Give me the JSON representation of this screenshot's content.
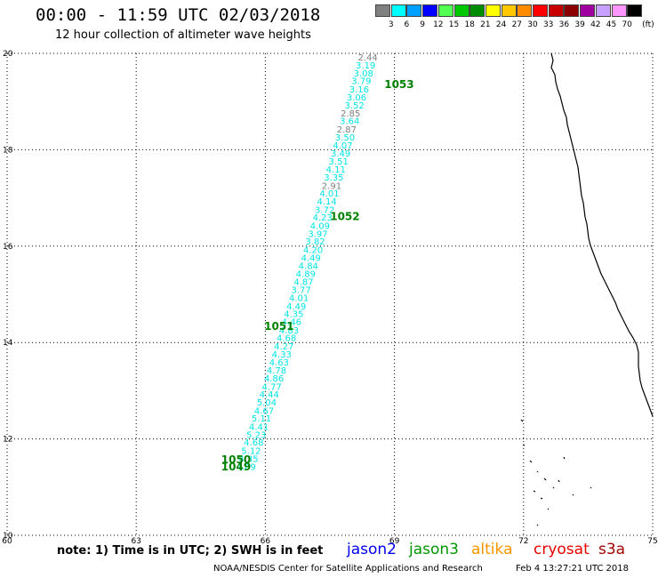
{
  "header": {
    "title": "00:00 - 11:59 UTC 02/03/2018",
    "subtitle": "12 hour collection of altimeter wave heights"
  },
  "colorbar": {
    "unit": "(ft)",
    "items": [
      {
        "color": "#808080",
        "label": "3"
      },
      {
        "color": "#00ffff",
        "label": "6"
      },
      {
        "color": "#00a0ff",
        "label": "9"
      },
      {
        "color": "#0000ff",
        "label": "12"
      },
      {
        "color": "#50ff50",
        "label": "15"
      },
      {
        "color": "#00c800",
        "label": "18"
      },
      {
        "color": "#008c00",
        "label": "21"
      },
      {
        "color": "#ffff00",
        "label": "24"
      },
      {
        "color": "#ffc800",
        "label": "27"
      },
      {
        "color": "#ff8c00",
        "label": "30"
      },
      {
        "color": "#ff0000",
        "label": "33"
      },
      {
        "color": "#c80000",
        "label": "36"
      },
      {
        "color": "#8c0000",
        "label": "39"
      },
      {
        "color": "#a000a0",
        "label": "42"
      },
      {
        "color": "#c8a0ff",
        "label": "45"
      },
      {
        "color": "#ff96ff",
        "label": "70"
      },
      {
        "color": "#000000",
        "label": ""
      }
    ]
  },
  "axes": {
    "lon_ticks": [
      60,
      63,
      66,
      69,
      72,
      75
    ],
    "lat_ticks": [
      10,
      12,
      14,
      16,
      18,
      20
    ],
    "lon_range": [
      60,
      75
    ],
    "lat_range": [
      10,
      20
    ]
  },
  "track_points": [
    {
      "lon": 68.38,
      "lat": 19.85,
      "value": "2.44",
      "color": "#808080"
    },
    {
      "lon": 68.33,
      "lat": 19.69,
      "value": "3.19",
      "color": "#00e5e5"
    },
    {
      "lon": 68.28,
      "lat": 19.52,
      "value": "3.08",
      "color": "#00e5e5"
    },
    {
      "lon": 68.23,
      "lat": 19.36,
      "value": "3.79",
      "color": "#00e5e5"
    },
    {
      "lon": 68.18,
      "lat": 19.19,
      "value": "3.16",
      "color": "#00e5e5"
    },
    {
      "lon": 68.12,
      "lat": 19.02,
      "value": "3.06",
      "color": "#00e5e5"
    },
    {
      "lon": 68.07,
      "lat": 18.86,
      "value": "3.52",
      "color": "#00e5e5"
    },
    {
      "lon": 67.98,
      "lat": 18.69,
      "value": "2.85",
      "color": "#808080"
    },
    {
      "lon": 67.96,
      "lat": 18.53,
      "value": "3.64",
      "color": "#00e5e5"
    },
    {
      "lon": 67.89,
      "lat": 18.36,
      "value": "2.87",
      "color": "#808080"
    },
    {
      "lon": 67.85,
      "lat": 18.19,
      "value": "3.50",
      "color": "#00e5e5"
    },
    {
      "lon": 67.8,
      "lat": 18.03,
      "value": "4.07",
      "color": "#00e5e5"
    },
    {
      "lon": 67.75,
      "lat": 17.86,
      "value": "3.49",
      "color": "#00e5e5"
    },
    {
      "lon": 67.7,
      "lat": 17.69,
      "value": "3.51",
      "color": "#00e5e5"
    },
    {
      "lon": 67.64,
      "lat": 17.53,
      "value": "4.11",
      "color": "#00e5e5"
    },
    {
      "lon": 67.59,
      "lat": 17.36,
      "value": "3.35",
      "color": "#00e5e5"
    },
    {
      "lon": 67.54,
      "lat": 17.19,
      "value": "2.91",
      "color": "#808080"
    },
    {
      "lon": 67.49,
      "lat": 17.03,
      "value": "4.01",
      "color": "#00e5e5"
    },
    {
      "lon": 67.43,
      "lat": 16.86,
      "value": "4.14",
      "color": "#00e5e5"
    },
    {
      "lon": 67.38,
      "lat": 16.69,
      "value": "3.72",
      "color": "#00e5e5"
    },
    {
      "lon": 67.33,
      "lat": 16.53,
      "value": "4.23",
      "color": "#00e5e5"
    },
    {
      "lon": 67.27,
      "lat": 16.36,
      "value": "4.09",
      "color": "#00e5e5"
    },
    {
      "lon": 67.22,
      "lat": 16.19,
      "value": "3.97",
      "color": "#00e5e5"
    },
    {
      "lon": 67.16,
      "lat": 16.03,
      "value": "3.82",
      "color": "#00e5e5"
    },
    {
      "lon": 67.11,
      "lat": 15.86,
      "value": "4.20",
      "color": "#00e5e5"
    },
    {
      "lon": 67.06,
      "lat": 15.69,
      "value": "4.49",
      "color": "#00e5e5"
    },
    {
      "lon": 67.0,
      "lat": 15.53,
      "value": "4.84",
      "color": "#00e5e5"
    },
    {
      "lon": 66.94,
      "lat": 15.36,
      "value": "4.89",
      "color": "#00e5e5"
    },
    {
      "lon": 66.89,
      "lat": 15.19,
      "value": "4.87",
      "color": "#00e5e5"
    },
    {
      "lon": 66.83,
      "lat": 15.03,
      "value": "3.77",
      "color": "#00e5e5"
    },
    {
      "lon": 66.78,
      "lat": 14.86,
      "value": "4.01",
      "color": "#00e5e5"
    },
    {
      "lon": 66.72,
      "lat": 14.69,
      "value": "4.49",
      "color": "#00e5e5"
    },
    {
      "lon": 66.66,
      "lat": 14.53,
      "value": "4.35",
      "color": "#00e5e5"
    },
    {
      "lon": 66.61,
      "lat": 14.36,
      "value": "4.46",
      "color": "#00e5e5"
    },
    {
      "lon": 66.55,
      "lat": 14.19,
      "value": "4.83",
      "color": "#00e5e5"
    },
    {
      "lon": 66.49,
      "lat": 14.03,
      "value": "4.68",
      "color": "#00e5e5"
    },
    {
      "lon": 66.43,
      "lat": 13.86,
      "value": "4.27",
      "color": "#00e5e5"
    },
    {
      "lon": 66.38,
      "lat": 13.69,
      "value": "4.33",
      "color": "#00e5e5"
    },
    {
      "lon": 66.32,
      "lat": 13.52,
      "value": "4.63",
      "color": "#00e5e5"
    },
    {
      "lon": 66.26,
      "lat": 13.36,
      "value": "4.78",
      "color": "#00e5e5"
    },
    {
      "lon": 66.2,
      "lat": 13.19,
      "value": "4.86",
      "color": "#00e5e5"
    },
    {
      "lon": 66.15,
      "lat": 13.02,
      "value": "4.77",
      "color": "#00e5e5"
    },
    {
      "lon": 66.09,
      "lat": 12.86,
      "value": "4.44",
      "color": "#00e5e5"
    },
    {
      "lon": 66.03,
      "lat": 12.69,
      "value": "5.04",
      "color": "#00e5e5"
    },
    {
      "lon": 65.97,
      "lat": 12.52,
      "value": "4.67",
      "color": "#00e5e5"
    },
    {
      "lon": 65.91,
      "lat": 12.36,
      "value": "5.11",
      "color": "#00e5e5"
    },
    {
      "lon": 65.85,
      "lat": 12.19,
      "value": "4.41",
      "color": "#00e5e5"
    },
    {
      "lon": 65.79,
      "lat": 12.02,
      "value": "5.23",
      "color": "#00e5e5"
    },
    {
      "lon": 65.73,
      "lat": 11.86,
      "value": "4.68",
      "color": "#00e5e5"
    },
    {
      "lon": 65.67,
      "lat": 11.69,
      "value": "5.12",
      "color": "#00e5e5"
    },
    {
      "lon": 65.61,
      "lat": 11.52,
      "value": "4.35",
      "color": "#00e5e5"
    },
    {
      "lon": 65.55,
      "lat": 11.36,
      "value": "4.69",
      "color": "#00e5e5"
    }
  ],
  "time_labels": [
    {
      "lon": 69.11,
      "lat": 19.28,
      "text": "1053"
    },
    {
      "lon": 67.85,
      "lat": 16.54,
      "text": "1052"
    },
    {
      "lon": 66.32,
      "lat": 14.26,
      "text": "1051"
    },
    {
      "lon": 65.32,
      "lat": 11.49,
      "text": "1050"
    },
    {
      "lon": 65.32,
      "lat": 11.35,
      "text": "1049"
    }
  ],
  "footer": {
    "note": "note: 1) Time is in UTC; 2) SWH is in feet",
    "satellites": [
      {
        "name": "jason2",
        "color": "#0000ee"
      },
      {
        "name": "jason3",
        "color": "#009600"
      },
      {
        "name": "altika",
        "color": "#ff9600"
      },
      {
        "name": "cryosat",
        "color": "#e60000"
      },
      {
        "name": "s3a",
        "color": "#a00000"
      }
    ],
    "credit": "NOAA/NESDIS Center for Satellite Applications and Research",
    "stamp": "Feb  4 13:27:21 UTC 2018"
  }
}
